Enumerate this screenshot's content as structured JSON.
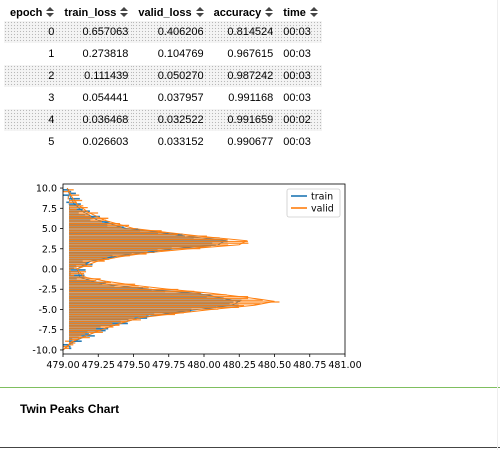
{
  "table": {
    "columns": [
      "epoch",
      "train_loss",
      "valid_loss",
      "accuracy",
      "time"
    ],
    "rows": [
      [
        "0",
        "0.657063",
        "0.406206",
        "0.814524",
        "00:03"
      ],
      [
        "1",
        "0.273818",
        "0.104769",
        "0.967615",
        "00:03"
      ],
      [
        "2",
        "0.111439",
        "0.050270",
        "0.987242",
        "00:03"
      ],
      [
        "3",
        "0.054441",
        "0.037957",
        "0.991168",
        "00:03"
      ],
      [
        "4",
        "0.036468",
        "0.032522",
        "0.991659",
        "00:02"
      ],
      [
        "5",
        "0.026603",
        "0.033152",
        "0.990677",
        "00:03"
      ]
    ]
  },
  "section": {
    "title": "Twin Peaks Chart"
  },
  "colors": {
    "train": "#1f77b4",
    "valid": "#ff7f0e",
    "divider": "#7fbf5f"
  },
  "chart_data": {
    "type": "line",
    "title": "",
    "xlabel": "",
    "ylabel": "",
    "xlim": [
      479.0,
      481.0
    ],
    "ylim": [
      -10.5,
      10.5
    ],
    "xticks": [
      "479.00",
      "479.25",
      "479.50",
      "479.75",
      "480.00",
      "480.25",
      "480.50",
      "480.75",
      "481.00"
    ],
    "yticks": [
      "10.0",
      "7.5",
      "5.0",
      "2.5",
      "0.0",
      "-2.5",
      "-5.0",
      "-7.5",
      "-10.0"
    ],
    "legend": "top-right",
    "grid": false,
    "series": [
      {
        "name": "train",
        "color": "#1f77b4",
        "y": [
          -10.0,
          -9.0,
          -8.0,
          -7.0,
          -6.0,
          -5.5,
          -5.0,
          -4.5,
          -4.0,
          -3.5,
          -3.0,
          -2.5,
          -2.0,
          -1.5,
          -1.0,
          0.0,
          1.0,
          1.5,
          2.0,
          2.5,
          3.0,
          3.5,
          4.0,
          4.5,
          5.0,
          6.0,
          7.0,
          8.0,
          9.0,
          10.0
        ],
        "x": [
          479.0,
          479.07,
          479.2,
          479.35,
          479.55,
          479.75,
          479.95,
          480.2,
          480.25,
          480.1,
          479.95,
          479.6,
          479.35,
          479.2,
          479.12,
          479.1,
          479.2,
          479.35,
          479.55,
          479.8,
          480.1,
          480.15,
          479.9,
          479.7,
          479.45,
          479.25,
          479.15,
          479.08,
          479.05,
          479.03
        ]
      },
      {
        "name": "valid",
        "color": "#ff7f0e",
        "y": [
          -10.0,
          -9.0,
          -8.0,
          -7.0,
          -6.0,
          -5.5,
          -5.0,
          -4.5,
          -4.0,
          -3.5,
          -3.0,
          -2.5,
          -2.0,
          -1.5,
          -1.0,
          0.0,
          1.0,
          1.5,
          2.0,
          2.5,
          3.0,
          3.5,
          4.0,
          4.5,
          5.0,
          6.0,
          7.0,
          8.0,
          9.0,
          10.0
        ],
        "x": [
          479.0,
          479.06,
          479.2,
          479.35,
          479.55,
          479.8,
          480.05,
          480.35,
          480.5,
          480.3,
          480.05,
          479.75,
          479.5,
          479.3,
          479.15,
          479.1,
          479.25,
          479.4,
          479.6,
          479.9,
          480.25,
          480.3,
          480.0,
          479.75,
          479.5,
          479.3,
          479.18,
          479.1,
          479.06,
          479.03
        ]
      }
    ]
  }
}
